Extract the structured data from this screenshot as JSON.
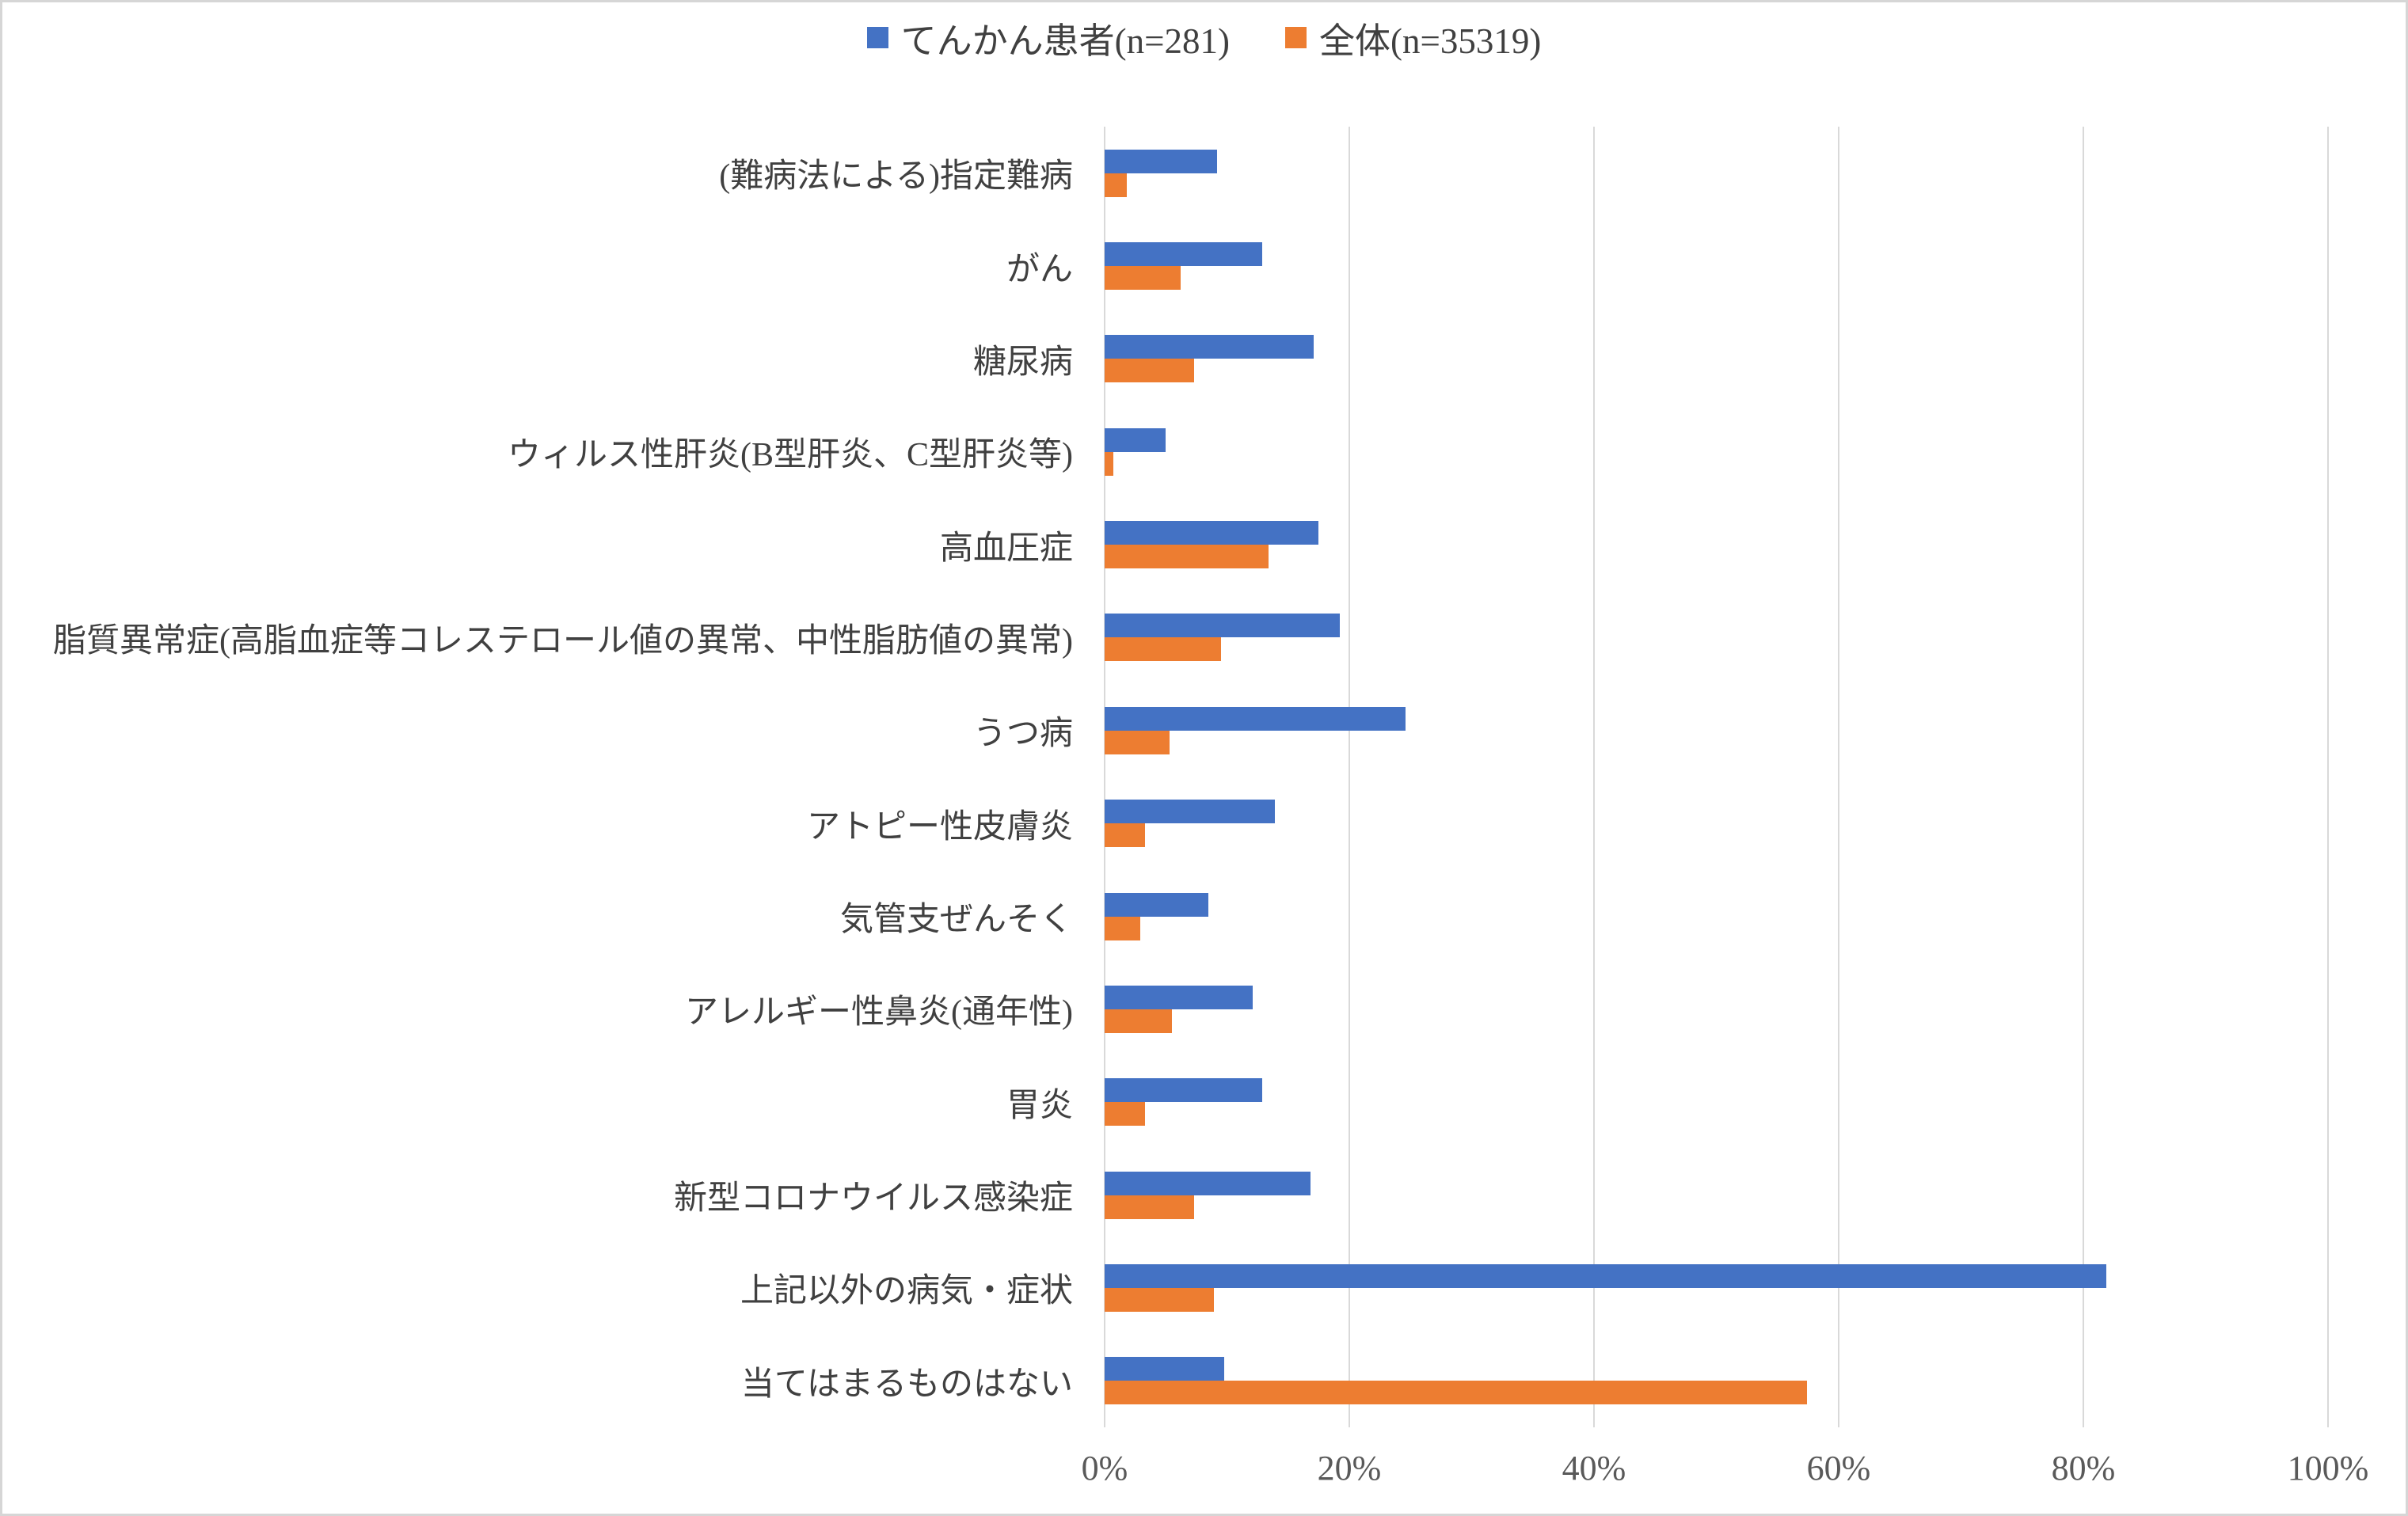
{
  "chart_data": {
    "type": "bar",
    "orientation": "horizontal",
    "title": "",
    "categories": [
      "(難病法による)指定難病",
      "がん",
      "糖尿病",
      "ウィルス性肝炎(B型肝炎、C型肝炎等)",
      "高血圧症",
      "脂質異常症(高脂血症等コレステロール値の異常、中性脂肪値の異常)",
      "うつ病",
      "アトピー性皮膚炎",
      "気管支ぜんそく",
      "アレルギー性鼻炎(通年性)",
      "胃炎",
      "新型コロナウイルス感染症",
      "上記以外の病気・症状",
      "当てはまるものはない"
    ],
    "series": [
      {
        "name": "てんかん患者(n=281)",
        "color": "#4472C4",
        "values": [
          9.2,
          12.9,
          17.1,
          5.0,
          17.5,
          19.2,
          24.6,
          13.9,
          8.5,
          12.1,
          12.9,
          16.8,
          81.9,
          9.8
        ]
      },
      {
        "name": "全体(n=35319)",
        "color": "#ED7D31",
        "values": [
          1.8,
          6.2,
          7.3,
          0.7,
          13.4,
          9.5,
          5.3,
          3.3,
          2.9,
          5.5,
          3.3,
          7.3,
          8.9,
          57.4
        ]
      }
    ],
    "xlim": [
      0,
      100
    ],
    "x_ticks": [
      "0%",
      "20%",
      "40%",
      "60%",
      "80%",
      "100%"
    ],
    "grid": "vertical",
    "legend_position": "top"
  },
  "colors": {
    "gridline": "#D9D9D9",
    "axis_text": "#595959",
    "category_text": "#404040",
    "frame_border": "#D6D6D6",
    "background": "#FFFFFF"
  }
}
